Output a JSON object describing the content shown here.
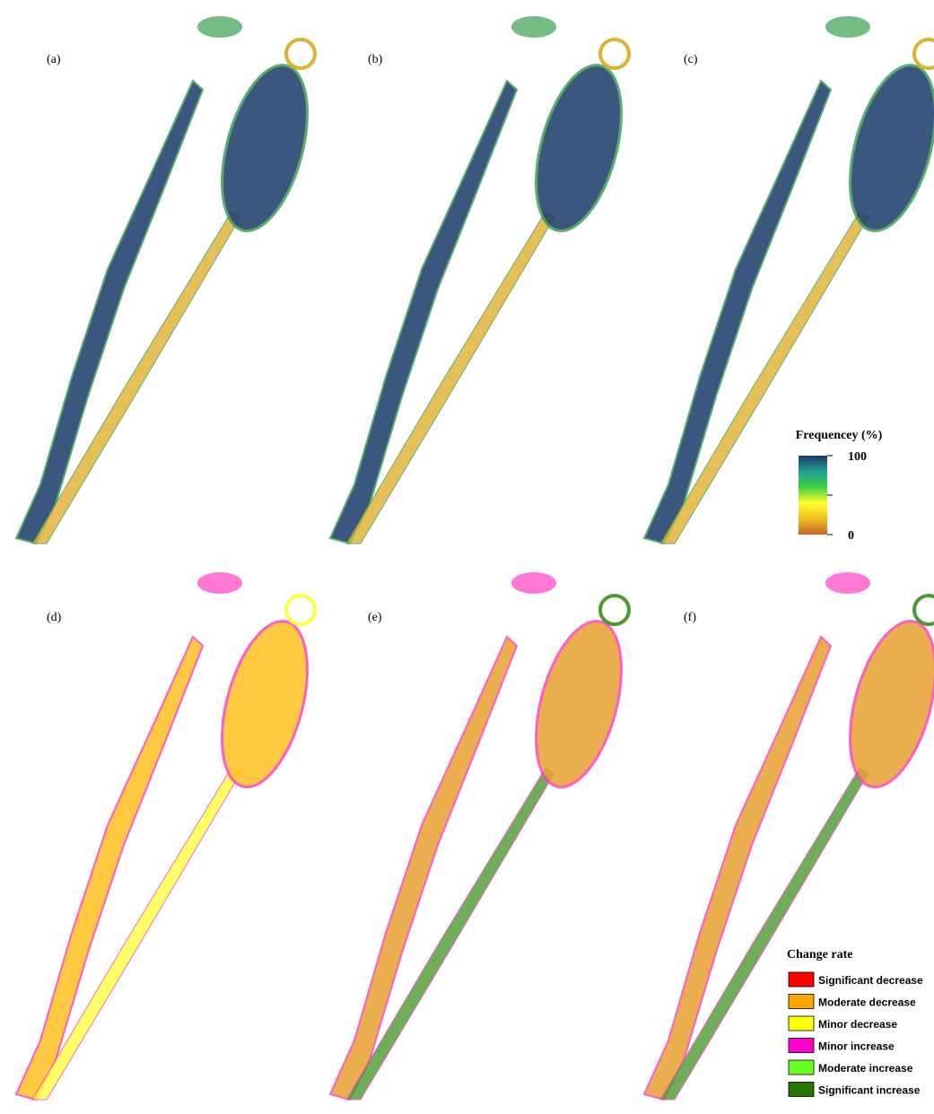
{
  "panels": [
    "(a)",
    "(b)",
    "(c)",
    "(d)",
    "(e)",
    "(f)"
  ],
  "frequency_legend": {
    "title": "Frequencey (%)",
    "lim": [
      0,
      100
    ],
    "ticks": [
      100,
      0
    ],
    "colors": [
      "#c8642a",
      "#f0c020",
      "#ffff30",
      "#40d040",
      "#20a090",
      "#1a3a6b"
    ]
  },
  "change_legend": {
    "title": "Change rate",
    "items": [
      {
        "name": "Significant decrease",
        "color": "#ff0000"
      },
      {
        "name": "Moderate decrease",
        "color": "#ffa500"
      },
      {
        "name": "Minor decrease",
        "color": "#ffff00"
      },
      {
        "name": "Minor increase",
        "color": "#ff00cc"
      },
      {
        "name": "Moderate increase",
        "color": "#66ff22"
      },
      {
        "name": "Significant increase",
        "color": "#267300"
      }
    ]
  }
}
